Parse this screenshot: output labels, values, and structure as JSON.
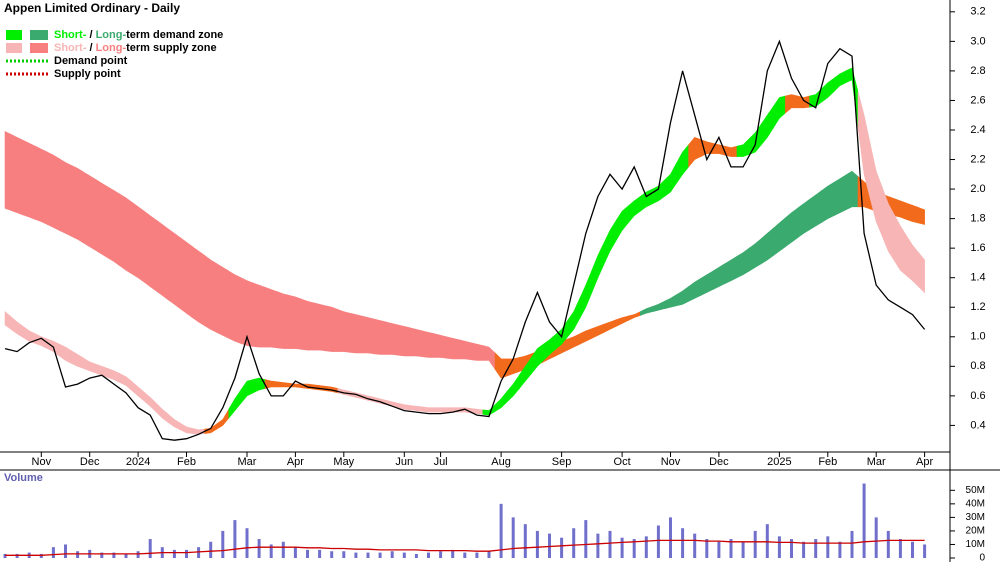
{
  "chart_data": [
    {
      "type": "line",
      "title": "Appen Limited Ordinary - Daily",
      "categories": [
        null,
        null,
        null,
        "Nov",
        null,
        null,
        null,
        "Dec",
        null,
        null,
        null,
        "2024",
        null,
        null,
        null,
        "Feb",
        null,
        null,
        null,
        null,
        "Mar",
        null,
        null,
        null,
        "Apr",
        null,
        null,
        null,
        "May",
        null,
        null,
        null,
        null,
        "Jun",
        null,
        null,
        "Jul",
        null,
        null,
        null,
        null,
        "Aug",
        null,
        null,
        null,
        null,
        "Sep",
        null,
        null,
        null,
        null,
        "Oct",
        null,
        null,
        null,
        "Nov",
        null,
        null,
        null,
        "Dec",
        null,
        null,
        null,
        null,
        "2025",
        null,
        null,
        null,
        "Feb",
        null,
        null,
        null,
        "Mar",
        null,
        null,
        null,
        "Apr"
      ],
      "values": [
        0.92,
        0.9,
        0.96,
        0.99,
        0.93,
        0.66,
        0.68,
        0.72,
        0.74,
        0.68,
        0.62,
        0.52,
        0.47,
        0.31,
        0.3,
        0.31,
        0.34,
        0.38,
        0.52,
        0.72,
        1.0,
        0.75,
        0.6,
        0.6,
        0.7,
        0.66,
        0.65,
        0.64,
        0.62,
        0.61,
        0.58,
        0.56,
        0.53,
        0.5,
        0.49,
        0.48,
        0.48,
        0.49,
        0.51,
        0.47,
        0.46,
        0.7,
        0.85,
        1.1,
        1.3,
        1.1,
        1.0,
        1.35,
        1.7,
        1.95,
        2.1,
        2.0,
        2.15,
        1.95,
        2.0,
        2.45,
        2.8,
        2.5,
        2.2,
        2.35,
        2.15,
        2.15,
        2.3,
        2.8,
        3.0,
        2.75,
        2.6,
        2.55,
        2.85,
        2.95,
        2.9,
        1.7,
        1.35,
        1.25,
        1.2,
        1.15,
        1.05
      ],
      "color": "#000000",
      "bands": [
        {
          "upper": [
            2.39,
            2.35,
            2.31,
            2.27,
            2.23,
            2.18,
            2.14,
            2.09,
            2.04,
            1.99,
            1.94,
            1.88,
            1.82,
            1.76,
            1.7,
            1.64,
            1.58,
            1.52,
            1.47,
            1.42,
            1.38,
            1.35,
            1.32,
            1.29,
            1.27,
            1.24,
            1.22,
            1.2,
            1.17,
            1.15,
            1.13,
            1.11,
            1.09,
            1.07,
            1.05,
            1.03,
            1.01,
            0.99,
            0.97,
            0.95,
            0.93,
            0.85,
            0.85,
            0.87,
            0.9,
            0.93,
            0.97,
            1.0,
            1.04,
            1.07,
            1.1,
            1.13,
            1.15,
            1.19,
            1.22,
            1.26,
            1.31,
            1.37,
            1.42,
            1.47,
            1.52,
            1.57,
            1.63,
            1.7,
            1.77,
            1.84,
            1.9,
            1.96,
            2.02,
            2.07,
            2.12,
            2.05,
            1.98,
            1.95,
            1.92,
            1.89,
            1.86
          ],
          "lower": [
            1.87,
            1.84,
            1.81,
            1.78,
            1.74,
            1.7,
            1.66,
            1.61,
            1.56,
            1.51,
            1.45,
            1.4,
            1.34,
            1.28,
            1.22,
            1.16,
            1.1,
            1.05,
            1.01,
            0.97,
            0.94,
            0.93,
            0.93,
            0.92,
            0.92,
            0.91,
            0.91,
            0.9,
            0.9,
            0.89,
            0.89,
            0.88,
            0.88,
            0.87,
            0.87,
            0.86,
            0.86,
            0.85,
            0.85,
            0.84,
            0.84,
            0.72,
            0.75,
            0.78,
            0.81,
            0.85,
            0.89,
            0.93,
            0.97,
            1.01,
            1.05,
            1.09,
            1.13,
            1.16,
            1.18,
            1.2,
            1.22,
            1.26,
            1.3,
            1.34,
            1.38,
            1.42,
            1.47,
            1.52,
            1.58,
            1.64,
            1.7,
            1.75,
            1.8,
            1.84,
            1.88,
            1.88,
            1.85,
            1.83,
            1.81,
            1.78,
            1.76
          ],
          "colors": [
            "#f77f7f",
            "#f77f7f",
            "#f77f7f",
            "#f77f7f",
            "#f77f7f",
            "#f77f7f",
            "#f77f7f",
            "#f77f7f",
            "#f77f7f",
            "#f77f7f",
            "#f77f7f",
            "#f77f7f",
            "#f77f7f",
            "#f77f7f",
            "#f77f7f",
            "#f77f7f",
            "#f77f7f",
            "#f77f7f",
            "#f77f7f",
            "#f77f7f",
            "#f77f7f",
            "#f77f7f",
            "#f77f7f",
            "#f77f7f",
            "#f77f7f",
            "#f77f7f",
            "#f77f7f",
            "#f77f7f",
            "#f77f7f",
            "#f77f7f",
            "#f77f7f",
            "#f77f7f",
            "#f77f7f",
            "#f77f7f",
            "#f77f7f",
            "#f77f7f",
            "#f77f7f",
            "#f77f7f",
            "#f77f7f",
            "#f77f7f",
            "#f77f7f",
            "#f26a1b",
            "#f26a1b",
            "#f26a1b",
            "#f26a1b",
            "#f26a1b",
            "#f26a1b",
            "#f26a1b",
            "#f26a1b",
            "#f26a1b",
            "#f26a1b",
            "#f26a1b",
            "#f26a1b",
            "#3aaa6e",
            "#3aaa6e",
            "#3aaa6e",
            "#3aaa6e",
            "#3aaa6e",
            "#3aaa6e",
            "#3aaa6e",
            "#3aaa6e",
            "#3aaa6e",
            "#3aaa6e",
            "#3aaa6e",
            "#3aaa6e",
            "#3aaa6e",
            "#3aaa6e",
            "#3aaa6e",
            "#3aaa6e",
            "#3aaa6e",
            "#3aaa6e",
            "#f26a1b",
            "#f26a1b",
            "#f26a1b",
            "#f26a1b",
            "#f26a1b",
            "#f26a1b"
          ]
        },
        {
          "upper": [
            1.17,
            1.1,
            1.04,
            1.0,
            0.97,
            0.93,
            0.88,
            0.83,
            0.8,
            0.77,
            0.73,
            0.66,
            0.59,
            0.51,
            0.44,
            0.39,
            0.37,
            0.38,
            0.44,
            0.58,
            0.7,
            0.72,
            0.7,
            0.69,
            0.68,
            0.68,
            0.67,
            0.66,
            0.64,
            0.62,
            0.6,
            0.58,
            0.56,
            0.54,
            0.53,
            0.52,
            0.52,
            0.52,
            0.52,
            0.51,
            0.5,
            0.58,
            0.68,
            0.8,
            0.92,
            0.98,
            1.05,
            1.17,
            1.35,
            1.55,
            1.72,
            1.85,
            1.92,
            1.98,
            2.02,
            2.1,
            2.25,
            2.35,
            2.32,
            2.3,
            2.28,
            2.3,
            2.38,
            2.5,
            2.62,
            2.64,
            2.62,
            2.64,
            2.72,
            2.78,
            2.82,
            2.5,
            2.12,
            1.9,
            1.75,
            1.62,
            1.52
          ],
          "lower": [
            1.08,
            1.02,
            0.97,
            0.94,
            0.9,
            0.84,
            0.8,
            0.77,
            0.74,
            0.71,
            0.67,
            0.6,
            0.53,
            0.45,
            0.39,
            0.35,
            0.34,
            0.35,
            0.4,
            0.5,
            0.6,
            0.64,
            0.66,
            0.66,
            0.66,
            0.65,
            0.64,
            0.63,
            0.61,
            0.59,
            0.57,
            0.55,
            0.53,
            0.51,
            0.5,
            0.49,
            0.49,
            0.49,
            0.49,
            0.48,
            0.47,
            0.52,
            0.6,
            0.7,
            0.8,
            0.88,
            0.95,
            1.05,
            1.2,
            1.4,
            1.58,
            1.72,
            1.82,
            1.88,
            1.92,
            1.98,
            2.1,
            2.2,
            2.24,
            2.24,
            2.22,
            2.22,
            2.25,
            2.35,
            2.48,
            2.55,
            2.55,
            2.56,
            2.62,
            2.7,
            2.74,
            2.1,
            1.78,
            1.58,
            1.45,
            1.38,
            1.3
          ],
          "colors": [
            "#f7b5b5",
            "#f7b5b5",
            "#f7b5b5",
            "#f7b5b5",
            "#f7b5b5",
            "#f7b5b5",
            "#f7b5b5",
            "#f7b5b5",
            "#f7b5b5",
            "#f7b5b5",
            "#f7b5b5",
            "#f7b5b5",
            "#f7b5b5",
            "#f7b5b5",
            "#f7b5b5",
            "#f7b5b5",
            "#f7b5b5",
            "#f26a1b",
            "#f26a1b",
            "#00ee00",
            "#00ee00",
            "#00ee00",
            "#f26a1b",
            "#f26a1b",
            "#f26a1b",
            "#f26a1b",
            "#f26a1b",
            "#f26a1b",
            "#f7b5b5",
            "#f7b5b5",
            "#f7b5b5",
            "#f7b5b5",
            "#f7b5b5",
            "#f7b5b5",
            "#f7b5b5",
            "#f7b5b5",
            "#f7b5b5",
            "#f7b5b5",
            "#f7b5b5",
            "#f7b5b5",
            "#00ee00",
            "#00ee00",
            "#00ee00",
            "#00ee00",
            "#00ee00",
            "#00ee00",
            "#00ee00",
            "#00ee00",
            "#00ee00",
            "#00ee00",
            "#00ee00",
            "#00ee00",
            "#00ee00",
            "#00ee00",
            "#00ee00",
            "#00ee00",
            "#00ee00",
            "#f26a1b",
            "#f26a1b",
            "#f26a1b",
            "#f26a1b",
            "#00ee00",
            "#00ee00",
            "#00ee00",
            "#00ee00",
            "#f26a1b",
            "#f26a1b",
            "#00ee00",
            "#00ee00",
            "#00ee00",
            "#00ee00",
            "#f7b5b5",
            "#f7b5b5",
            "#f7b5b5",
            "#f7b5b5",
            "#f7b5b5",
            "#f7b5b5"
          ]
        }
      ],
      "legend": [
        {
          "short": "Short-",
          "sep": " / ",
          "long": "Long-",
          "rest": "term demand zone",
          "colors": [
            "#00ee00",
            "#3aaa6e"
          ]
        },
        {
          "short": "Short-",
          "sep": " / ",
          "long": "Long-",
          "rest": "term supply zone",
          "colors": [
            "#f7b5b5",
            "#f77f7f"
          ]
        },
        {
          "label": "Demand point",
          "color": "#00cc00"
        },
        {
          "label": "Supply point",
          "color": "#cc0000"
        }
      ],
      "ylim": [
        0.22,
        3.28
      ],
      "yticks": [
        0.4,
        0.6,
        0.8,
        {
          "value": 1,
          "label": "1.0"
        },
        1.2,
        1.4,
        1.6,
        1.8,
        {
          "value": 2,
          "label": "2.0"
        },
        2.2,
        2.4,
        2.6,
        2.8,
        {
          "value": 3,
          "label": "3.0"
        },
        3.2
      ]
    },
    {
      "type": "bar",
      "title": "Volume",
      "values": [
        3000000,
        3000000,
        4000000,
        3000000,
        8000000,
        10000000,
        5000000,
        6000000,
        4000000,
        4000000,
        3000000,
        5000000,
        14000000,
        8000000,
        6000000,
        6000000,
        8000000,
        12000000,
        20000000,
        28000000,
        22000000,
        14000000,
        10000000,
        12000000,
        8000000,
        6000000,
        6000000,
        5000000,
        5000000,
        4000000,
        4000000,
        4000000,
        5000000,
        4000000,
        3000000,
        4000000,
        5000000,
        6000000,
        4000000,
        4000000,
        5000000,
        40000000,
        30000000,
        25000000,
        20000000,
        18000000,
        15000000,
        22000000,
        28000000,
        18000000,
        20000000,
        15000000,
        14000000,
        16000000,
        24000000,
        30000000,
        22000000,
        18000000,
        14000000,
        12000000,
        14000000,
        12000000,
        20000000,
        25000000,
        16000000,
        14000000,
        12000000,
        14000000,
        16000000,
        12000000,
        20000000,
        55000000,
        30000000,
        20000000,
        14000000,
        12000000,
        10000000
      ],
      "color": "#7070cc",
      "average": {
        "color": "#cc0000",
        "values": [
          2000000,
          2000000,
          2000000,
          2000000,
          2500000,
          3000000,
          3000000,
          3000000,
          3000000,
          3000000,
          3000000,
          3000000,
          3500000,
          4000000,
          4000000,
          4000000,
          4500000,
          5000000,
          5500000,
          6500000,
          7500000,
          8000000,
          8000000,
          8000000,
          8000000,
          7500000,
          7500000,
          7000000,
          7000000,
          6500000,
          6500000,
          6000000,
          6000000,
          6000000,
          6000000,
          5500000,
          5500000,
          5500000,
          5500000,
          5000000,
          5000000,
          6000000,
          7000000,
          7500000,
          8000000,
          8500000,
          9000000,
          9500000,
          10000000,
          10500000,
          11000000,
          11500000,
          12000000,
          12500000,
          13000000,
          13000000,
          13000000,
          13000000,
          12500000,
          12500000,
          12000000,
          12000000,
          12000000,
          12000000,
          11500000,
          11500000,
          11000000,
          11000000,
          11000000,
          11000000,
          11000000,
          12000000,
          12500000,
          13000000,
          13000000,
          13000000,
          13000000
        ]
      },
      "ylim": [
        0,
        65000000
      ],
      "yticks": [
        0,
        {
          "value": 10000000,
          "label": "10M"
        },
        {
          "value": 20000000,
          "label": "20M"
        },
        {
          "value": 30000000,
          "label": "30M"
        },
        {
          "value": 40000000,
          "label": "40M"
        },
        {
          "value": 50000000,
          "label": "50M"
        }
      ]
    }
  ]
}
